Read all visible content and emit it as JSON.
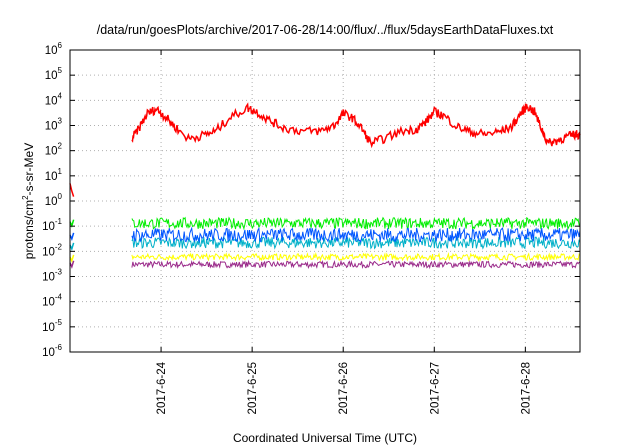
{
  "chart_data": {
    "type": "line",
    "title": "/data/run/goesPlots/archive/2017-06-28/14:00/flux/../flux/5daysEarthDataFluxes.txt",
    "xlabel": "Coordinated Universal Time (UTC)",
    "ylabel_parts": [
      "protons/cm",
      "2",
      "-s-sr-MeV"
    ],
    "yscale": "log",
    "ylim": [
      1e-06,
      1000000.0
    ],
    "y_ticks": [
      {
        "base": "10",
        "exp": "-6",
        "value": -6
      },
      {
        "base": "10",
        "exp": "-5",
        "value": -5
      },
      {
        "base": "10",
        "exp": "-4",
        "value": -4
      },
      {
        "base": "10",
        "exp": "-3",
        "value": -3
      },
      {
        "base": "10",
        "exp": "-2",
        "value": -2
      },
      {
        "base": "10",
        "exp": "-1",
        "value": -1
      },
      {
        "base": "10",
        "exp": "0",
        "value": 0
      },
      {
        "base": "10",
        "exp": "1",
        "value": 1
      },
      {
        "base": "10",
        "exp": "2",
        "value": 2
      },
      {
        "base": "10",
        "exp": "3",
        "value": 3
      },
      {
        "base": "10",
        "exp": "4",
        "value": 4
      },
      {
        "base": "10",
        "exp": "5",
        "value": 5
      },
      {
        "base": "10",
        "exp": "6",
        "value": 6
      }
    ],
    "xlim_days": [
      23.0,
      28.6
    ],
    "x_ticks": [
      {
        "label": "2017-6-24",
        "day": 24
      },
      {
        "label": "2017-6-25",
        "day": 25
      },
      {
        "label": "2017-6-26",
        "day": 26
      },
      {
        "label": "2017-6-27",
        "day": 27
      },
      {
        "label": "2017-6-28",
        "day": 28
      }
    ],
    "grid": true,
    "gap_days": [
      23.04,
      23.68
    ],
    "series": [
      {
        "color": "#ff0000",
        "pre_gap": [
          [
            23.0,
            5
          ],
          [
            23.02,
            2.5
          ],
          [
            23.04,
            1.5
          ]
        ],
        "points": [
          [
            23.68,
            300
          ],
          [
            23.75,
            700
          ],
          [
            23.85,
            3000
          ],
          [
            23.95,
            4500
          ],
          [
            24.05,
            2200
          ],
          [
            24.15,
            900
          ],
          [
            24.3,
            300
          ],
          [
            24.45,
            400
          ],
          [
            24.6,
            600
          ],
          [
            24.75,
            2000
          ],
          [
            24.95,
            5000
          ],
          [
            25.05,
            3500
          ],
          [
            25.2,
            1500
          ],
          [
            25.35,
            800
          ],
          [
            25.55,
            600
          ],
          [
            25.75,
            600
          ],
          [
            25.9,
            1000
          ],
          [
            26.0,
            3000
          ],
          [
            26.1,
            2000
          ],
          [
            26.2,
            800
          ],
          [
            26.3,
            200
          ],
          [
            26.45,
            300
          ],
          [
            26.65,
            600
          ],
          [
            26.8,
            700
          ],
          [
            26.9,
            1300
          ],
          [
            27.0,
            3500
          ],
          [
            27.1,
            2500
          ],
          [
            27.25,
            900
          ],
          [
            27.4,
            550
          ],
          [
            27.55,
            450
          ],
          [
            27.7,
            550
          ],
          [
            27.85,
            900
          ],
          [
            27.95,
            3000
          ],
          [
            28.02,
            6000
          ],
          [
            28.1,
            3500
          ],
          [
            28.18,
            700
          ],
          [
            28.25,
            200
          ],
          [
            28.35,
            250
          ],
          [
            28.45,
            350
          ],
          [
            28.55,
            450
          ],
          [
            28.6,
            420
          ]
        ]
      },
      {
        "color": "#00ee00",
        "pre_gap_level": 0.15,
        "level": 0.13
      },
      {
        "color": "#0055ff",
        "pre_gap_level": 0.045,
        "level": 0.045
      },
      {
        "color": "#00b0c8",
        "pre_gap_level": 0.018,
        "level": 0.022
      },
      {
        "color": "#ffff00",
        "pre_gap_level": 0.006,
        "level": 0.006
      },
      {
        "color": "#9a2a8a",
        "pre_gap_level": 0.0035,
        "level": 0.003
      }
    ]
  }
}
